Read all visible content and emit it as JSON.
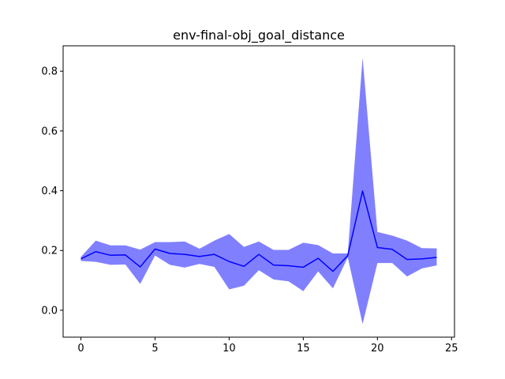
{
  "chart_data": {
    "type": "line",
    "title": "env-final-obj_goal_distance",
    "xlabel": "",
    "ylabel": "",
    "xlim": [
      -1.2,
      25.2
    ],
    "ylim": [
      -0.09,
      0.885
    ],
    "xticks": [
      0,
      5,
      10,
      15,
      20,
      25
    ],
    "xtick_labels": [
      "0",
      "5",
      "10",
      "15",
      "20",
      "25"
    ],
    "yticks": [
      0.0,
      0.2,
      0.4,
      0.6,
      0.8
    ],
    "ytick_labels": [
      "0.0",
      "0.2",
      "0.4",
      "0.6",
      "0.8"
    ],
    "grid": false,
    "legend": false,
    "line_color": "#0000ff",
    "band_color": "#8080ff",
    "series": [
      {
        "x": [
          0,
          1,
          2,
          3,
          4,
          5,
          6,
          7,
          8,
          9,
          10,
          11,
          12,
          13,
          14,
          15,
          16,
          17,
          18,
          19,
          20,
          21,
          22,
          23,
          24
        ],
        "mean": [
          0.172,
          0.196,
          0.184,
          0.185,
          0.145,
          0.205,
          0.19,
          0.187,
          0.18,
          0.187,
          0.163,
          0.147,
          0.187,
          0.151,
          0.149,
          0.144,
          0.174,
          0.13,
          0.183,
          0.399,
          0.21,
          0.204,
          0.17,
          0.172,
          0.177
        ],
        "upper": [
          0.179,
          0.233,
          0.217,
          0.217,
          0.203,
          0.228,
          0.228,
          0.23,
          0.206,
          0.233,
          0.255,
          0.212,
          0.23,
          0.202,
          0.202,
          0.226,
          0.218,
          0.19,
          0.19,
          0.845,
          0.262,
          0.25,
          0.233,
          0.208,
          0.207
        ],
        "lower": [
          0.165,
          0.162,
          0.152,
          0.153,
          0.088,
          0.183,
          0.152,
          0.143,
          0.155,
          0.145,
          0.07,
          0.082,
          0.134,
          0.103,
          0.097,
          0.064,
          0.13,
          0.073,
          0.177,
          -0.046,
          0.158,
          0.158,
          0.113,
          0.14,
          0.15
        ]
      }
    ]
  }
}
